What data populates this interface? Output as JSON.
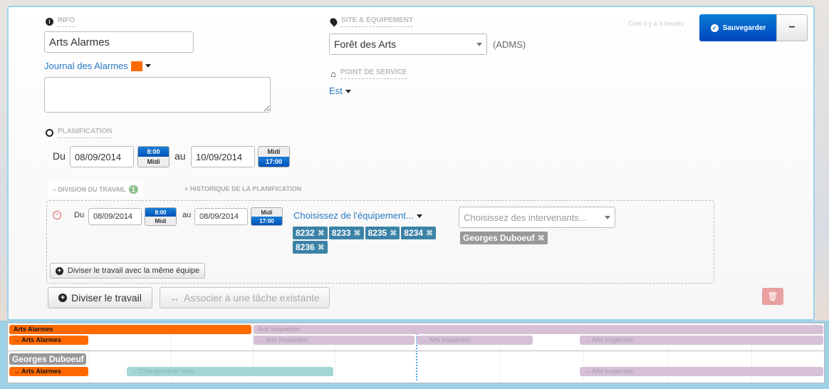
{
  "info": {
    "label": "INFO",
    "name": "Arts Alarmes",
    "journal": "Journal des Alarmes",
    "journal_color": "#ff6a00",
    "notes": ""
  },
  "site": {
    "label": "SITE & ÉQUIPEMENT",
    "value": "Forêt des Arts",
    "suffix": "(ADMS)",
    "service_label": "POINT DE SERVICE",
    "service_value": "Est"
  },
  "header": {
    "created": "Créé il y a 3 heures",
    "save": "Sauvegarder",
    "minus": "−"
  },
  "planning": {
    "label": "PLANIFICATION",
    "du": "Du",
    "start_date": "08/09/2014",
    "start_times": [
      "8:00",
      "Midi"
    ],
    "au": "au",
    "end_date": "10/09/2014",
    "end_times": [
      "Midi",
      "17:00"
    ]
  },
  "tabs": {
    "division": "– DIVISION DU TRAVAIL",
    "division_count": "1",
    "history": "+ HISTORIQUE DE LA PLANIFICATION"
  },
  "division": {
    "du": "Du",
    "start_date": "08/09/2014",
    "start_times": [
      "8:00",
      "Midi"
    ],
    "au": "au",
    "end_date": "08/09/2014",
    "end_times": [
      "Midi",
      "17:00"
    ],
    "equipment_placeholder": "Choisissez de l'équipement...",
    "equipment": [
      "8232",
      "8233",
      "8235",
      "8234",
      "8236"
    ],
    "workers_placeholder": "Choisissez des intervenants...",
    "workers": [
      "Georges Duboeuf"
    ],
    "split_same_team": "Diviser le travail avec la même équipe"
  },
  "actions": {
    "split": "Diviser le travail",
    "associate": "Associer à une tâche existante"
  },
  "gantt": {
    "rows": [
      {
        "bars": [
          {
            "label": "Arts Alarmes",
            "type": "current"
          },
          {
            "label": "Arts Inspection",
            "type": "other"
          }
        ]
      },
      {
        "bars": [
          {
            "label": "→ Arts Alarmes",
            "type": "current"
          },
          {
            "label": "→ Arts Inspection",
            "type": "other"
          },
          {
            "label": "→ Arts Inspection",
            "type": "other"
          },
          {
            "label": "→ Arts Inspection",
            "type": "other"
          }
        ]
      },
      {
        "person": "Georges Duboeuf"
      },
      {
        "bars": [
          {
            "label": "→ Arts Alarmes",
            "type": "current"
          },
          {
            "label": "→ Changements huile",
            "type": "maintenance"
          },
          {
            "label": "→ Arts Inspection",
            "type": "other"
          }
        ]
      }
    ]
  }
}
